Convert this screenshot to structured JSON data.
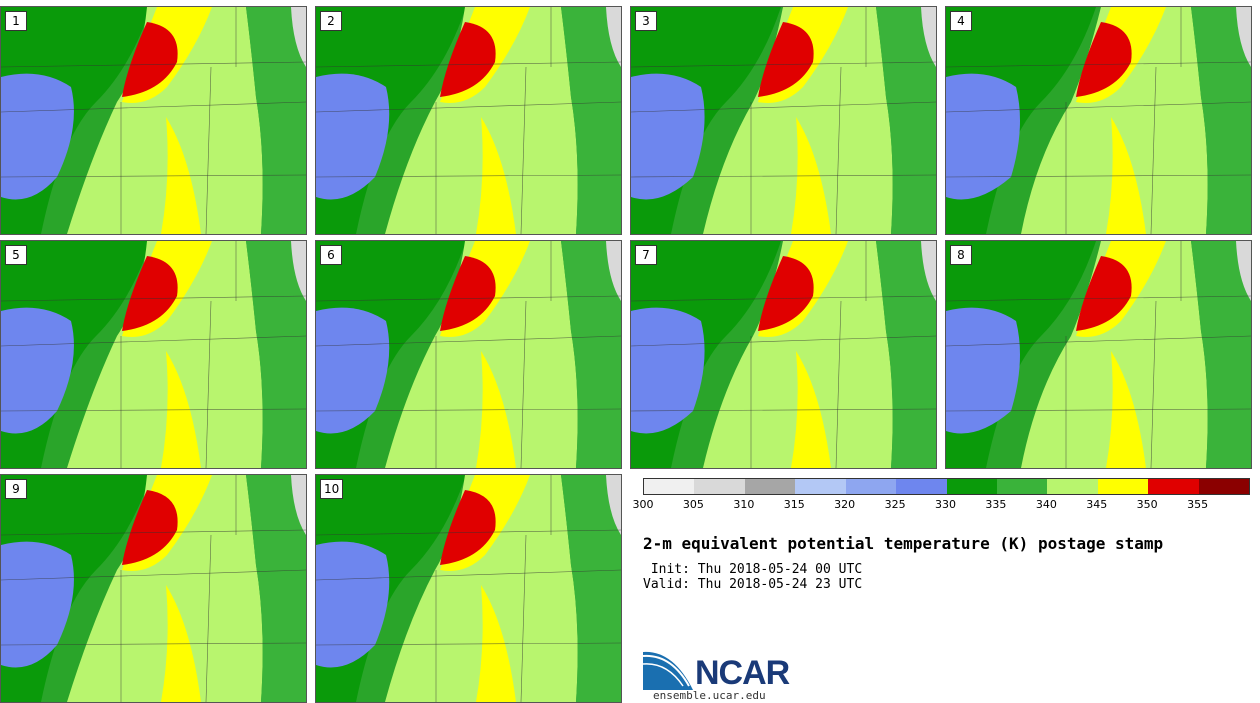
{
  "panels": [
    {
      "label": "1"
    },
    {
      "label": "2"
    },
    {
      "label": "3"
    },
    {
      "label": "4"
    },
    {
      "label": "5"
    },
    {
      "label": "6"
    },
    {
      "label": "7"
    },
    {
      "label": "8"
    },
    {
      "label": "9"
    },
    {
      "label": "10"
    }
  ],
  "colorbar": {
    "colors": [
      "#f0f0f0",
      "#d9d9d9",
      "#a6a6a6",
      "#b3c8f5",
      "#8ea6f0",
      "#6e86ee",
      "#0a9a0a",
      "#3ab33a",
      "#b8f56e",
      "#ffff00",
      "#e00000",
      "#8b0000"
    ],
    "ticks": [
      "300",
      "305",
      "310",
      "315",
      "320",
      "325",
      "330",
      "335",
      "340",
      "345",
      "350",
      "355"
    ]
  },
  "title": "2-m equivalent potential temperature (K) postage stamp",
  "init": " Init: Thu 2018-05-24 00 UTC",
  "valid": "Valid: Thu 2018-05-24 23 UTC",
  "logo": {
    "text": "NCAR",
    "site": "ensemble.ucar.edu"
  }
}
